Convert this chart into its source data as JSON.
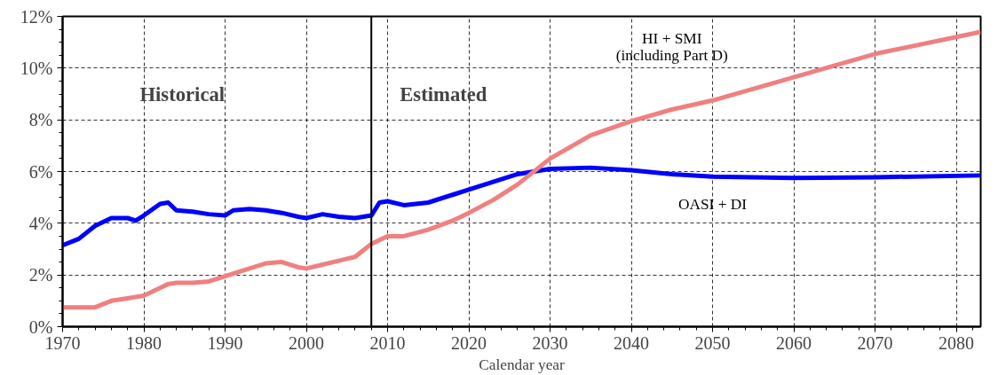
{
  "chart_data": {
    "type": "line",
    "xlabel": "Calendar year",
    "x": [
      1970,
      1972,
      1974,
      1976,
      1978,
      1979,
      1980,
      1982,
      1983,
      1984,
      1986,
      1988,
      1990,
      1991,
      1993,
      1995,
      1997,
      1999,
      2000,
      2002,
      2004,
      2006,
      2008,
      2009,
      2010,
      2012,
      2015,
      2018,
      2020,
      2023,
      2026,
      2030,
      2035,
      2040,
      2045,
      2050,
      2060,
      2070,
      2083
    ],
    "series": [
      {
        "name": "OASI + DI",
        "color": "#0000ff",
        "values": [
          3.15,
          3.4,
          3.9,
          4.2,
          4.2,
          4.1,
          4.3,
          4.75,
          4.8,
          4.5,
          4.45,
          4.35,
          4.3,
          4.5,
          4.55,
          4.5,
          4.4,
          4.25,
          4.2,
          4.35,
          4.25,
          4.2,
          4.3,
          4.8,
          4.85,
          4.7,
          4.8,
          5.1,
          5.3,
          5.6,
          5.9,
          6.1,
          6.15,
          6.05,
          5.9,
          5.8,
          5.75,
          5.78,
          5.85
        ]
      },
      {
        "name": "HI + SMI\n(including Part D)",
        "color": "#f08080",
        "values": [
          0.75,
          0.75,
          0.75,
          1.0,
          1.1,
          1.15,
          1.2,
          1.5,
          1.65,
          1.7,
          1.7,
          1.75,
          1.95,
          2.05,
          2.25,
          2.45,
          2.5,
          2.3,
          2.25,
          2.4,
          2.55,
          2.7,
          3.2,
          3.35,
          3.5,
          3.5,
          3.75,
          4.1,
          4.4,
          4.9,
          5.5,
          6.5,
          7.4,
          7.95,
          8.4,
          8.75,
          9.65,
          10.55,
          11.4
        ]
      }
    ],
    "xlim": [
      1970,
      2083
    ],
    "ylim": [
      0,
      12
    ],
    "xticks": [
      1970,
      1980,
      1990,
      2000,
      2010,
      2020,
      2030,
      2040,
      2050,
      2060,
      2070,
      2080
    ],
    "yticks": [
      {
        "value": 0,
        "label": "0%"
      },
      {
        "value": 2,
        "label": "2%"
      },
      {
        "value": 4,
        "label": "4%"
      },
      {
        "value": 6,
        "label": "6%"
      },
      {
        "value": 8,
        "label": "8%"
      },
      {
        "value": 10,
        "label": "10%"
      },
      {
        "value": 12,
        "label": "12%"
      }
    ],
    "ref_lines": [
      {
        "axis": "x",
        "value": 2008,
        "color": "#000000",
        "line_style": "solid"
      }
    ],
    "annotations": [
      "Historical",
      "Estimated"
    ],
    "grid": true,
    "marker": "none",
    "line_style": "solid"
  }
}
